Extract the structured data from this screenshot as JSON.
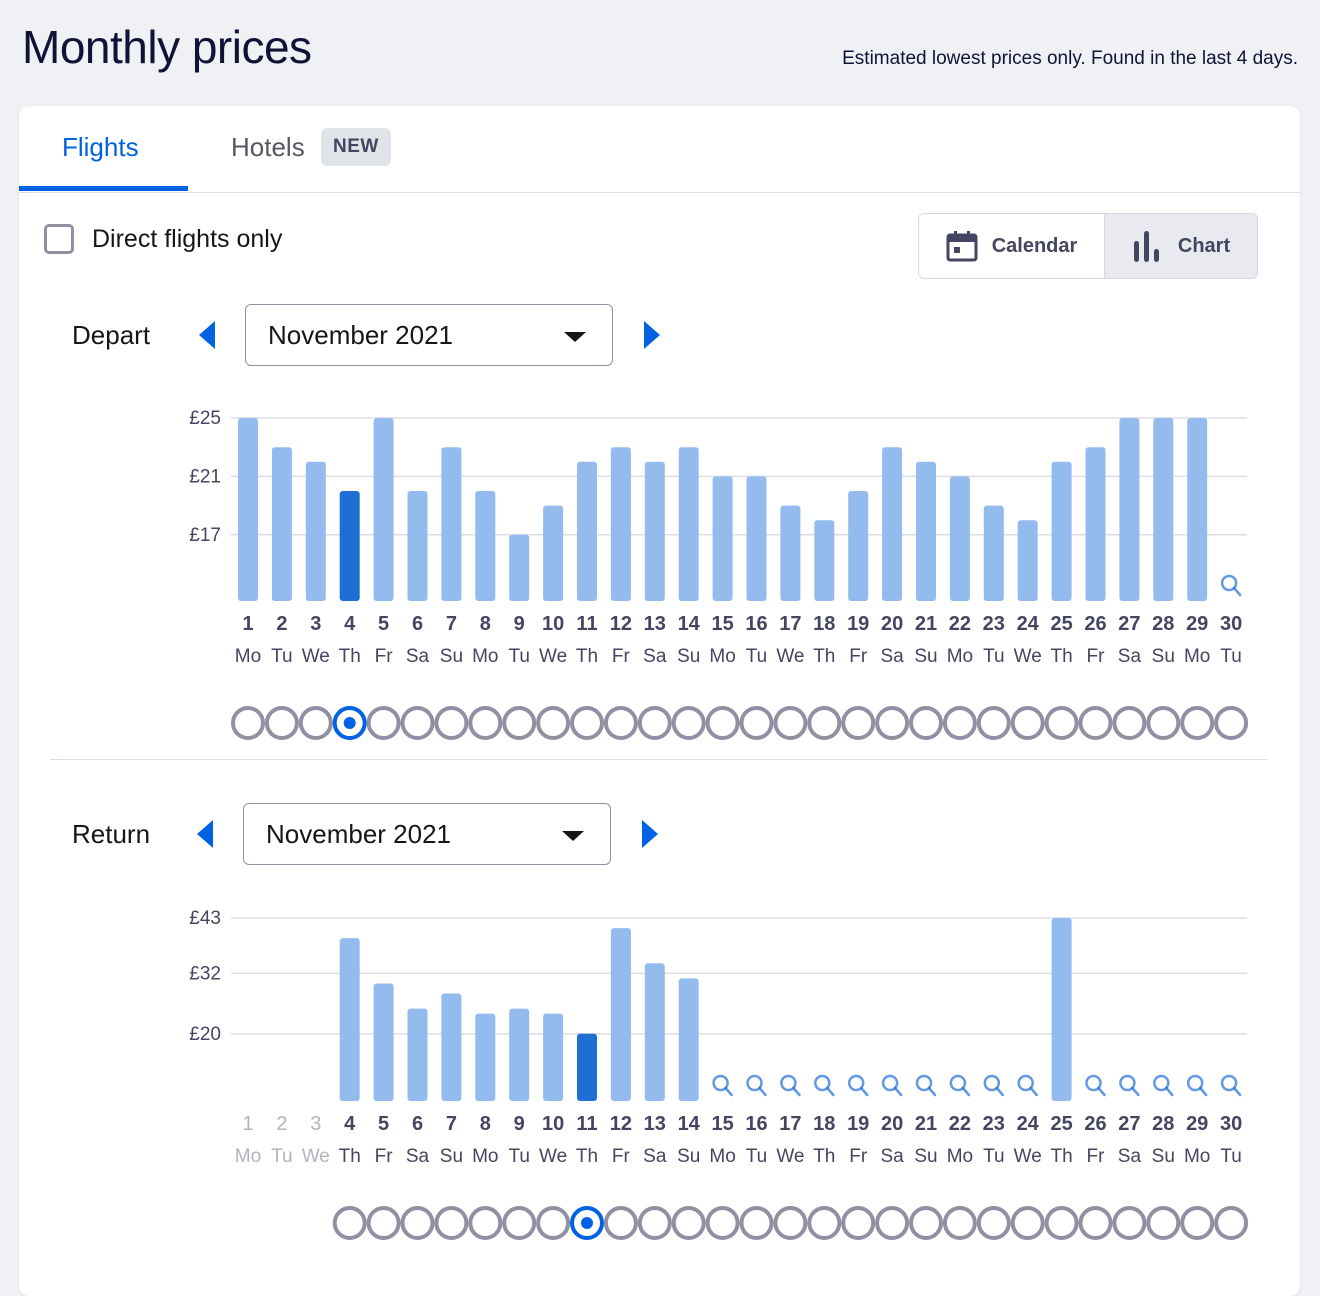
{
  "header": {
    "title": "Monthly prices",
    "subtitle": "Estimated lowest prices only. Found in the last 4 days."
  },
  "tabs": {
    "flights": "Flights",
    "hotels": "Hotels",
    "hotels_badge": "NEW"
  },
  "filters": {
    "direct_only_label": "Direct flights only",
    "direct_only_checked": false
  },
  "view_toggle": {
    "calendar_label": "Calendar",
    "chart_label": "Chart",
    "active": "chart"
  },
  "colors": {
    "bar": "#94bbee",
    "bar_selected": "#1f6ed4",
    "accent": "#0062e3",
    "grid": "#dddde5",
    "radio": "#8f91a3",
    "muted_text": "#b2b3bd"
  },
  "depart": {
    "label": "Depart",
    "month": "November 2021"
  },
  "return": {
    "label": "Return",
    "month": "November 2021"
  },
  "chart_data": [
    {
      "type": "bar",
      "name": "depart",
      "ylim": [
        15,
        25
      ],
      "yticks": [
        {
          "value": 25,
          "label": "£25"
        },
        {
          "value": 21,
          "label": "£21"
        },
        {
          "value": 17,
          "label": "£17"
        }
      ],
      "days": [
        "1",
        "2",
        "3",
        "4",
        "5",
        "6",
        "7",
        "8",
        "9",
        "10",
        "11",
        "12",
        "13",
        "14",
        "15",
        "16",
        "17",
        "18",
        "19",
        "20",
        "21",
        "22",
        "23",
        "24",
        "25",
        "26",
        "27",
        "28",
        "29",
        "30"
      ],
      "weekdays": [
        "Mo",
        "Tu",
        "We",
        "Th",
        "Fr",
        "Sa",
        "Su",
        "Mo",
        "Tu",
        "We",
        "Th",
        "Fr",
        "Sa",
        "Su",
        "Mo",
        "Tu",
        "We",
        "Th",
        "Fr",
        "Sa",
        "Su",
        "Mo",
        "Tu",
        "We",
        "Th",
        "Fr",
        "Sa",
        "Su",
        "Mo",
        "Tu"
      ],
      "values": [
        25,
        23,
        22,
        20,
        25,
        20,
        23,
        20,
        17,
        19,
        22,
        23,
        22,
        23,
        21,
        21,
        19,
        18,
        20,
        23,
        22,
        21,
        19,
        18,
        22,
        23,
        25,
        25,
        25,
        null
      ],
      "selected_day": 4,
      "disabled_days": []
    },
    {
      "type": "bar",
      "name": "return",
      "ylim": [
        14,
        43
      ],
      "yticks": [
        {
          "value": 43,
          "label": "£43"
        },
        {
          "value": 32,
          "label": "£32"
        },
        {
          "value": 20,
          "label": "£20"
        }
      ],
      "days": [
        "1",
        "2",
        "3",
        "4",
        "5",
        "6",
        "7",
        "8",
        "9",
        "10",
        "11",
        "12",
        "13",
        "14",
        "15",
        "16",
        "17",
        "18",
        "19",
        "20",
        "21",
        "22",
        "23",
        "24",
        "25",
        "26",
        "27",
        "28",
        "29",
        "30"
      ],
      "weekdays": [
        "Mo",
        "Tu",
        "We",
        "Th",
        "Fr",
        "Sa",
        "Su",
        "Mo",
        "Tu",
        "We",
        "Th",
        "Fr",
        "Sa",
        "Su",
        "Mo",
        "Tu",
        "We",
        "Th",
        "Fr",
        "Sa",
        "Su",
        "Mo",
        "Tu",
        "We",
        "Th",
        "Fr",
        "Sa",
        "Su",
        "Mo",
        "Tu"
      ],
      "values": [
        null,
        null,
        null,
        39,
        30,
        25,
        28,
        24,
        25,
        24,
        20,
        41,
        34,
        31,
        null,
        null,
        null,
        null,
        null,
        null,
        null,
        null,
        null,
        null,
        43,
        null,
        null,
        null,
        null,
        null
      ],
      "selected_day": 11,
      "disabled_days": [
        1,
        2,
        3
      ]
    }
  ]
}
